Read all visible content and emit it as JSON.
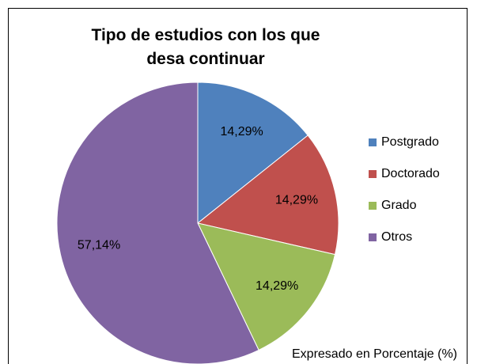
{
  "chart_data": {
    "type": "pie",
    "title": "Tipo de estudios con los que desa continuar",
    "categories": [
      "Postgrado",
      "Doctorado",
      "Grado",
      "Otros"
    ],
    "values": [
      14.29,
      14.29,
      14.29,
      57.14
    ],
    "value_labels": [
      "14,29%",
      "14,29%",
      "14,29%",
      "57,14%"
    ],
    "colors": [
      "#4f81bd",
      "#c0504d",
      "#9bbb59",
      "#8064a2"
    ],
    "annotation": "Expresado en Porcentaje (%)",
    "legend": "right"
  }
}
